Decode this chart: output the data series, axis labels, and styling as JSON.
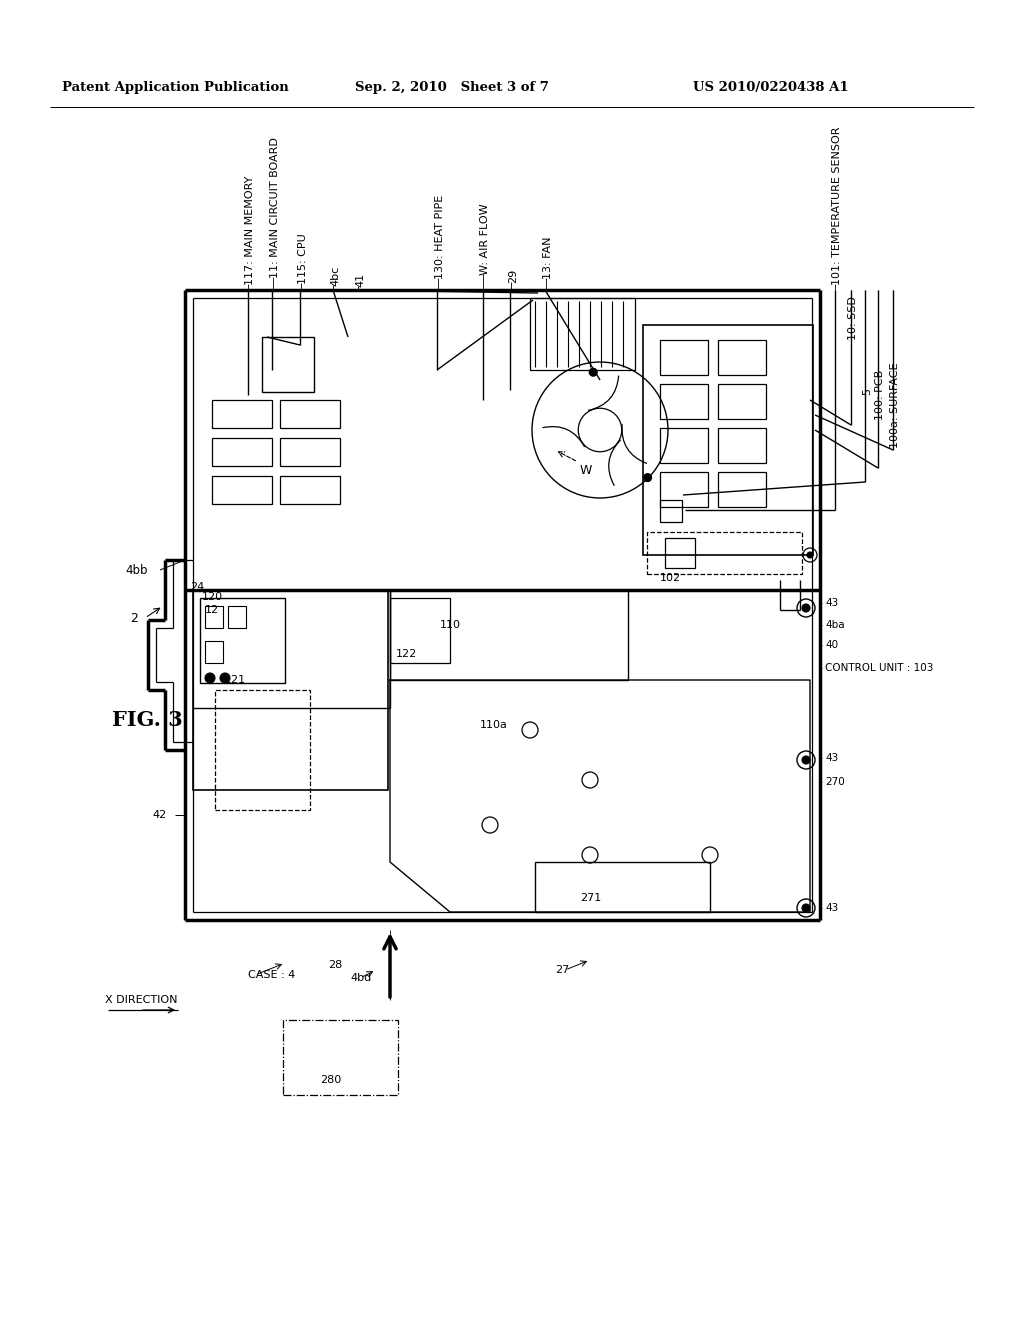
{
  "bg": "#ffffff",
  "lc": "#000000",
  "hdr_l": "Patent Application Publication",
  "hdr_m": "Sep. 2, 2010   Sheet 3 of 7",
  "hdr_r": "US 2010/0220438 A1"
}
